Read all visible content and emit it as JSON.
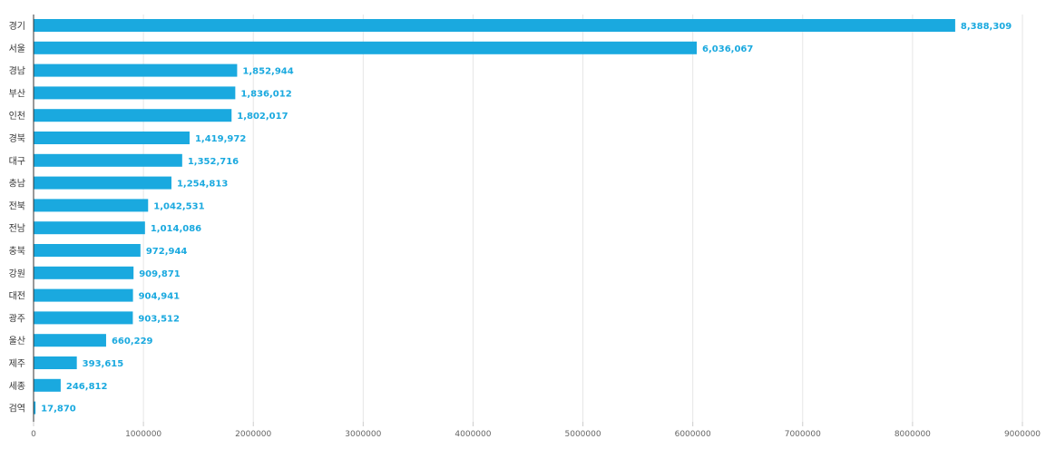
{
  "chart_data": {
    "type": "bar",
    "orientation": "horizontal",
    "title": "",
    "xlabel": "",
    "ylabel": "",
    "xlim": [
      0,
      9000000
    ],
    "x_ticks": [
      "0",
      "1000000",
      "2000000",
      "3000000",
      "4000000",
      "5000000",
      "6000000",
      "7000000",
      "8000000",
      "9000000"
    ],
    "grid": true,
    "categories": [
      "경기",
      "서울",
      "경남",
      "부산",
      "인천",
      "경북",
      "대구",
      "충남",
      "전북",
      "전남",
      "충북",
      "강원",
      "대전",
      "광주",
      "울산",
      "제주",
      "세종",
      "검역"
    ],
    "values": [
      8388309,
      6036067,
      1852944,
      1836012,
      1802017,
      1419972,
      1352716,
      1254813,
      1042531,
      1014086,
      972944,
      909871,
      904941,
      903512,
      660229,
      393615,
      246812,
      17870
    ],
    "value_labels": [
      "8,388,309",
      "6,036,067",
      "1,852,944",
      "1,836,012",
      "1,802,017",
      "1,419,972",
      "1,352,716",
      "1,254,813",
      "1,042,531",
      "1,014,086",
      "972,944",
      "909,871",
      "904,941",
      "903,512",
      "660,229",
      "393,615",
      "246,812",
      "17,870"
    ],
    "bar_color": "#1aa9df",
    "label_color": "#1aa9df"
  }
}
